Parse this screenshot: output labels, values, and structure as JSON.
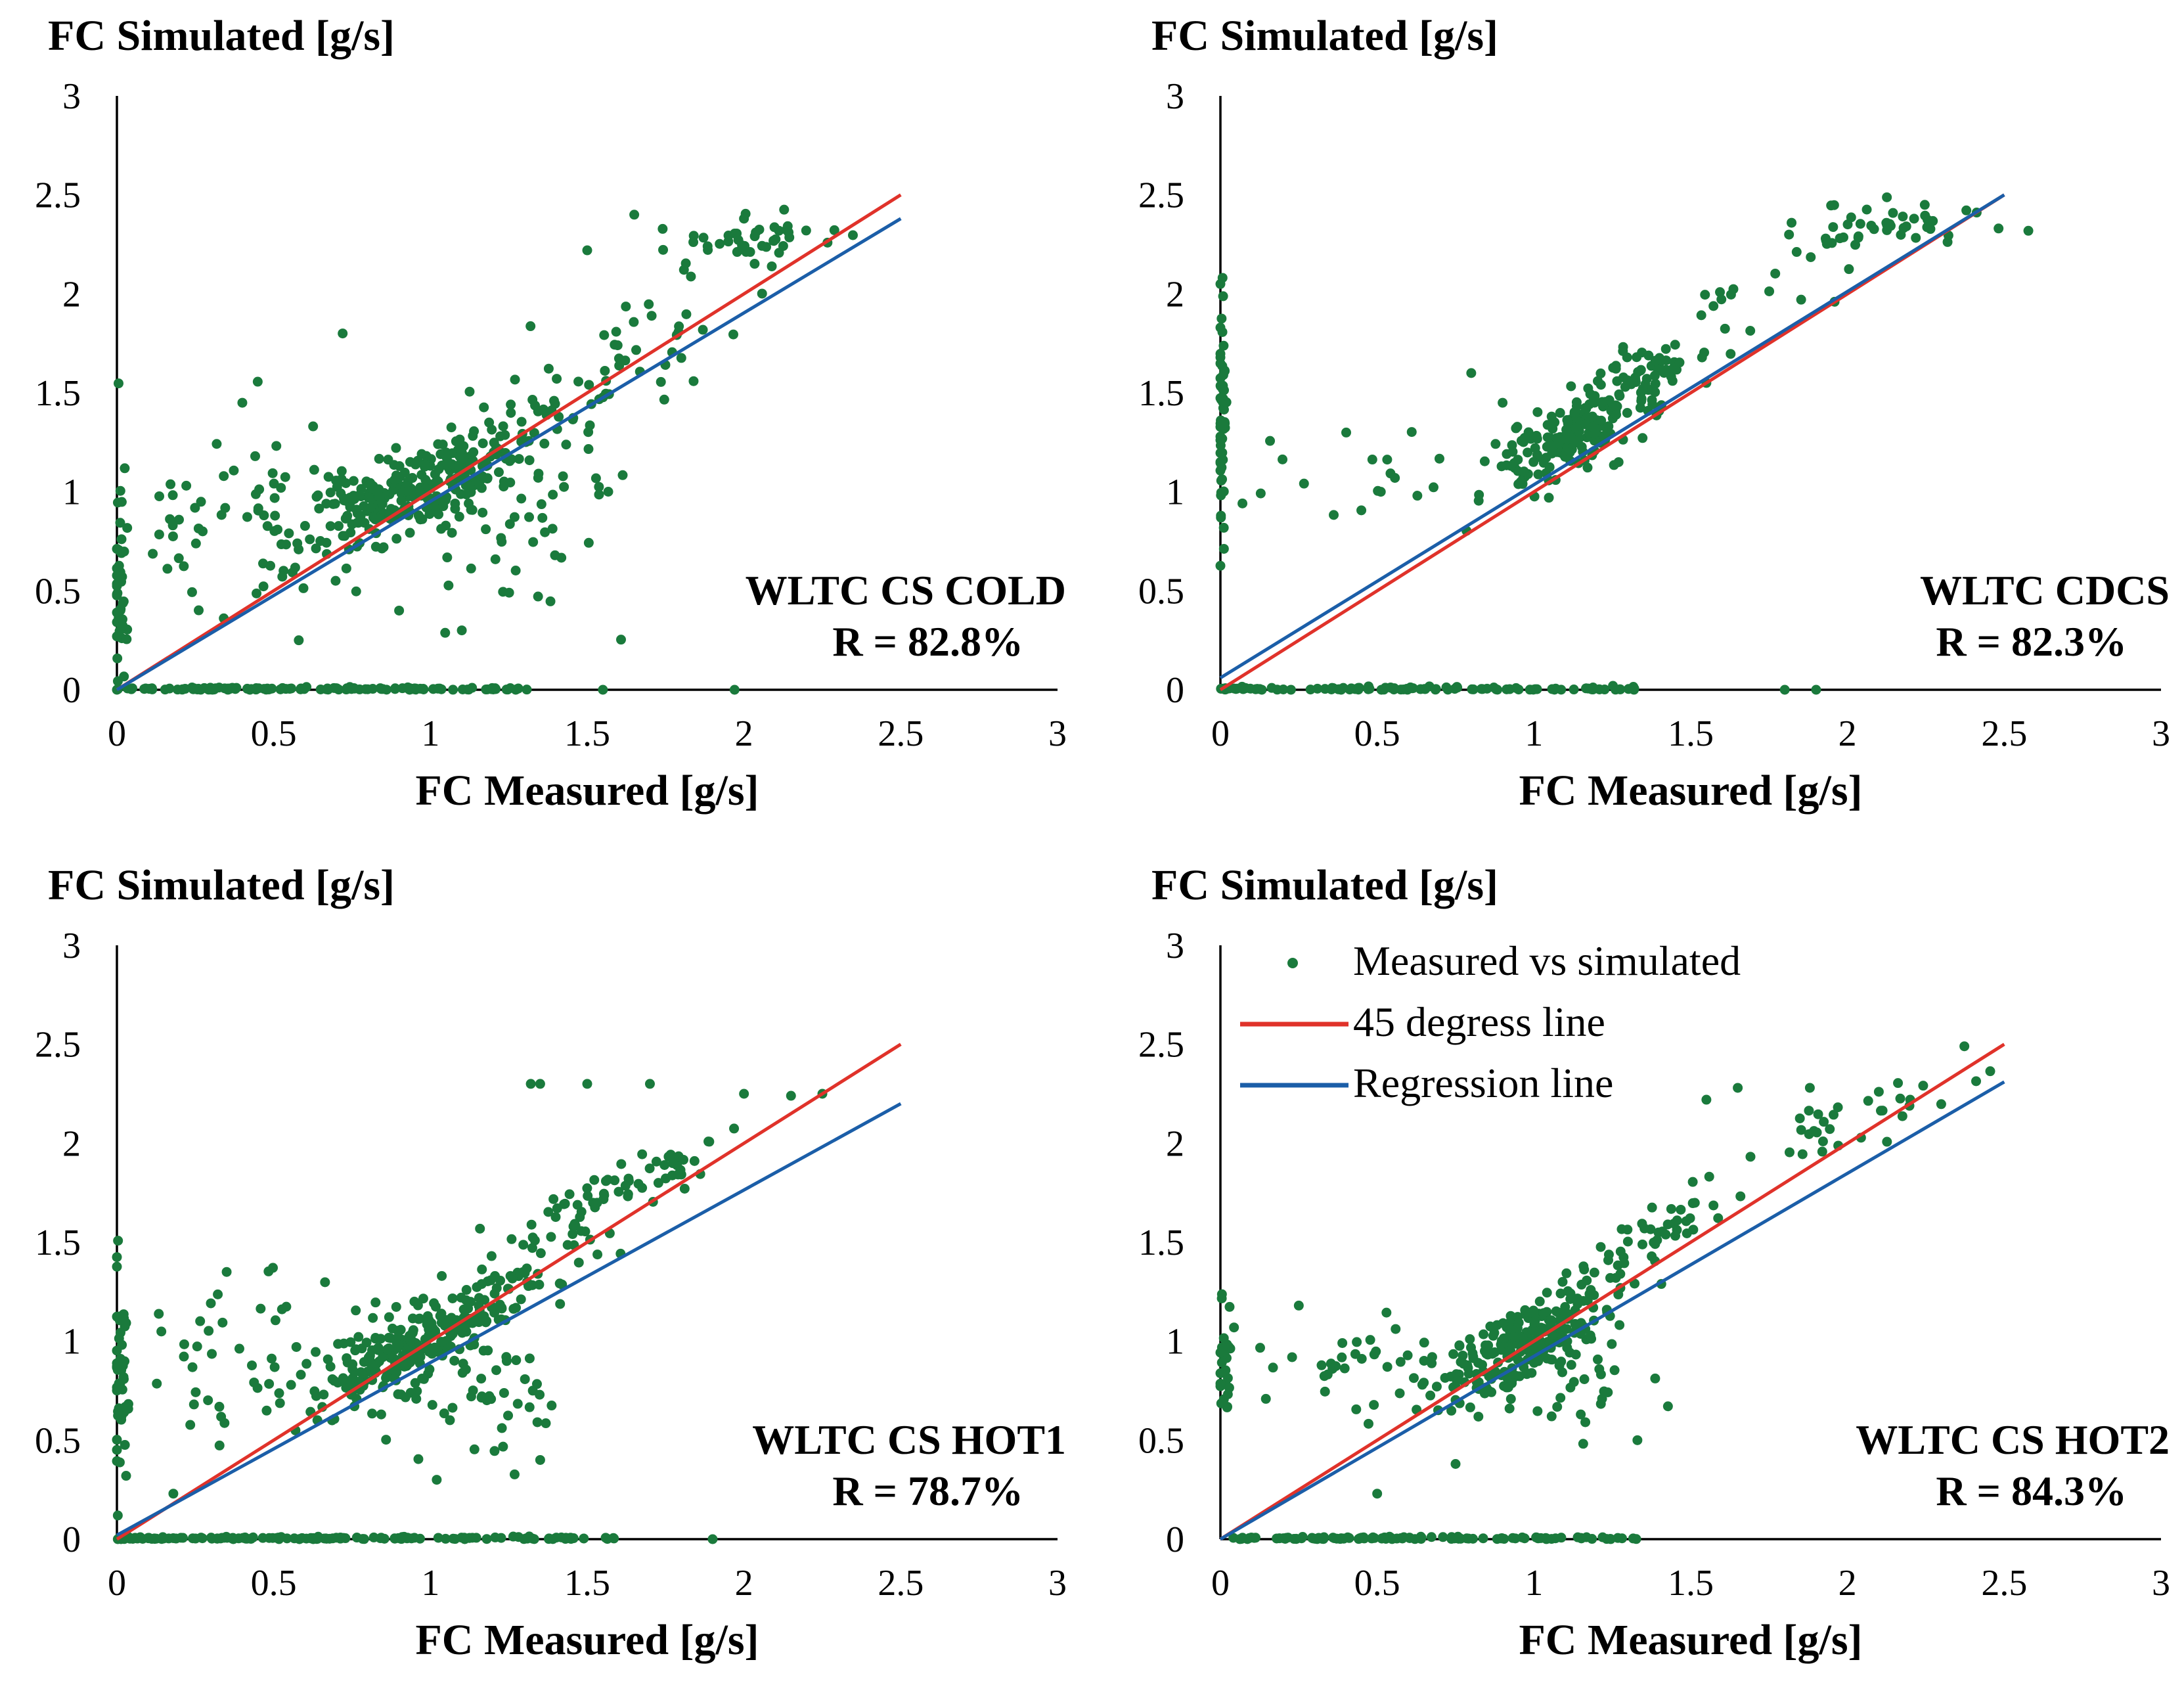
{
  "colors": {
    "points": "#1a7a3c",
    "diagonal": "#e0322a",
    "regression": "#1b5ea8",
    "axis": "#000000"
  },
  "legend": {
    "entries": [
      {
        "label": "Measured vs simulated",
        "kind": "points"
      },
      {
        "label": "45 degress line",
        "kind": "diagonal"
      },
      {
        "label": "Regression line",
        "kind": "regression"
      }
    ]
  },
  "chart_data": [
    {
      "type": "scatter",
      "id": "cs-cold",
      "ylabel": "FC Simulated [g/s]",
      "xlabel": "FC Measured [g/s]",
      "xlim": [
        0,
        3
      ],
      "ylim": [
        0,
        3
      ],
      "xticks": [
        "0",
        "0.5",
        "1",
        "1.5",
        "2",
        "2.5",
        "3"
      ],
      "yticks": [
        "0",
        "0.5",
        "1",
        "1.5",
        "2",
        "2.5",
        "3"
      ],
      "title": "WLTC CS COLD",
      "r_label": "R = 82.8%",
      "diagonal": {
        "x": [
          0,
          2.5
        ],
        "y": [
          0,
          2.5
        ]
      },
      "regression": {
        "x": [
          0,
          2.5
        ],
        "y": [
          0,
          2.38
        ]
      },
      "seed": 11,
      "clusters": [
        {
          "n": 260,
          "cx": 0.95,
          "cy": 1.02,
          "sx": 0.18,
          "sy": 0.16,
          "corr": 0.75
        },
        {
          "n": 70,
          "cx": 1.25,
          "cy": 0.9,
          "sx": 0.18,
          "sy": 0.3,
          "corr": 0.0
        },
        {
          "n": 50,
          "cx": 0.5,
          "cy": 0.9,
          "sx": 0.16,
          "sy": 0.22,
          "corr": 0.0
        },
        {
          "n": 40,
          "cx": 1.6,
          "cy": 1.65,
          "sx": 0.18,
          "sy": 0.2,
          "corr": 0.8
        },
        {
          "n": 45,
          "cx": 2.05,
          "cy": 2.28,
          "sx": 0.15,
          "sy": 0.07,
          "corr": 0.3
        },
        {
          "n": 45,
          "cx": 0.01,
          "cy": 0.6,
          "sx": 0.012,
          "sy": 0.3,
          "corr": 0.0
        },
        {
          "n": 15,
          "cx": 0.18,
          "cy": 0.8,
          "sx": 0.07,
          "sy": 0.22,
          "corr": 0.0
        }
      ],
      "baseline": {
        "n": 130,
        "xmin": 0.0,
        "xmax": 1.35
      },
      "extra_points": [
        [
          0.72,
          1.8
        ],
        [
          1.5,
          2.22
        ],
        [
          1.65,
          2.4
        ],
        [
          2.0,
          2.38
        ],
        [
          0.4,
          1.45
        ],
        [
          1.97,
          0.0
        ],
        [
          1.55,
          0.0
        ],
        [
          0.58,
          0.25
        ],
        [
          0.9,
          0.4
        ],
        [
          1.1,
          0.3
        ]
      ]
    },
    {
      "type": "scatter",
      "id": "cdcs",
      "ylabel": "FC Simulated [g/s]",
      "xlabel": "FC Measured [g/s]",
      "xlim": [
        0,
        3
      ],
      "ylim": [
        0,
        3
      ],
      "xticks": [
        "0",
        "0.5",
        "1",
        "1.5",
        "2",
        "2.5",
        "3"
      ],
      "yticks": [
        "0",
        "0.5",
        "1",
        "1.5",
        "2",
        "2.5",
        "3"
      ],
      "title": "WLTC CDCS",
      "r_label": "R = 82.3%",
      "diagonal": {
        "x": [
          0,
          2.5
        ],
        "y": [
          0,
          2.5
        ]
      },
      "regression": {
        "x": [
          0,
          2.5
        ],
        "y": [
          0.06,
          2.5
        ]
      },
      "seed": 23,
      "clusters": [
        {
          "n": 170,
          "cx": 1.12,
          "cy": 1.28,
          "sx": 0.13,
          "sy": 0.14,
          "corr": 0.7
        },
        {
          "n": 40,
          "cx": 1.35,
          "cy": 1.6,
          "sx": 0.08,
          "sy": 0.08,
          "corr": 0.5
        },
        {
          "n": 45,
          "cx": 2.1,
          "cy": 2.35,
          "sx": 0.14,
          "sy": 0.06,
          "corr": 0.3
        },
        {
          "n": 60,
          "cx": 0.005,
          "cy": 1.3,
          "sx": 0.006,
          "sy": 0.35,
          "corr": 0.0
        },
        {
          "n": 20,
          "cx": 0.45,
          "cy": 1.05,
          "sx": 0.18,
          "sy": 0.12,
          "corr": 0.0
        },
        {
          "n": 20,
          "cx": 1.7,
          "cy": 1.95,
          "sx": 0.15,
          "sy": 0.18,
          "corr": 0.6
        }
      ],
      "baseline": {
        "n": 110,
        "xmin": 0.0,
        "xmax": 1.35
      },
      "extra_points": [
        [
          0.8,
          1.6
        ],
        [
          0.9,
          1.45
        ],
        [
          1.9,
          0.0
        ],
        [
          1.8,
          0.0
        ],
        [
          0.0,
          2.05
        ],
        [
          1.55,
          1.55
        ],
        [
          1.27,
          1.15
        ]
      ]
    },
    {
      "type": "scatter",
      "id": "cs-hot1",
      "ylabel": "FC Simulated [g/s]",
      "xlabel": "FC Measured [g/s]",
      "xlim": [
        0,
        3
      ],
      "ylim": [
        0,
        3
      ],
      "xticks": [
        "0",
        "0.5",
        "1",
        "1.5",
        "2",
        "2.5",
        "3"
      ],
      "yticks": [
        "0",
        "0.5",
        "1",
        "1.5",
        "2",
        "2.5",
        "3"
      ],
      "title": "WLTC CS HOT1",
      "r_label": "R = 78.7%",
      "diagonal": {
        "x": [
          0,
          2.5
        ],
        "y": [
          0,
          2.5
        ]
      },
      "regression": {
        "x": [
          0,
          2.5
        ],
        "y": [
          0.02,
          2.2
        ]
      },
      "seed": 37,
      "clusters": [
        {
          "n": 240,
          "cx": 0.95,
          "cy": 0.98,
          "sx": 0.16,
          "sy": 0.15,
          "corr": 0.75
        },
        {
          "n": 60,
          "cx": 1.3,
          "cy": 1.35,
          "sx": 0.18,
          "sy": 0.2,
          "corr": 0.85
        },
        {
          "n": 55,
          "cx": 1.65,
          "cy": 1.8,
          "sx": 0.17,
          "sy": 0.12,
          "corr": 0.85
        },
        {
          "n": 40,
          "cx": 1.15,
          "cy": 0.75,
          "sx": 0.13,
          "sy": 0.15,
          "corr": 0.0
        },
        {
          "n": 45,
          "cx": 0.4,
          "cy": 0.9,
          "sx": 0.2,
          "sy": 0.22,
          "corr": 0.0
        },
        {
          "n": 50,
          "cx": 0.01,
          "cy": 0.75,
          "sx": 0.012,
          "sy": 0.3,
          "corr": 0.0
        }
      ],
      "baseline": {
        "n": 140,
        "xmin": 0.0,
        "xmax": 1.6
      },
      "extra_points": [
        [
          1.32,
          2.3
        ],
        [
          1.35,
          2.3
        ],
        [
          1.5,
          2.3
        ],
        [
          1.7,
          2.3
        ],
        [
          2.0,
          2.25
        ],
        [
          2.15,
          2.24
        ],
        [
          2.25,
          2.25
        ],
        [
          1.9,
          0.0
        ],
        [
          1.02,
          0.3
        ],
        [
          1.35,
          0.4
        ],
        [
          0.18,
          0.23
        ],
        [
          0.35,
          1.35
        ]
      ]
    },
    {
      "type": "scatter",
      "id": "cs-hot2",
      "ylabel": "FC Simulated [g/s]",
      "xlabel": "FC Measured [g/s]",
      "xlim": [
        0,
        3
      ],
      "ylim": [
        0,
        3
      ],
      "xticks": [
        "0",
        "0.5",
        "1",
        "1.5",
        "2",
        "2.5",
        "3"
      ],
      "yticks": [
        "0",
        "0.5",
        "1",
        "1.5",
        "2",
        "2.5",
        "3"
      ],
      "title": "WLTC CS HOT2",
      "r_label": "R = 84.3%",
      "diagonal": {
        "x": [
          0,
          2.5
        ],
        "y": [
          0,
          2.5
        ]
      },
      "regression": {
        "x": [
          0,
          2.5
        ],
        "y": [
          0,
          2.31
        ]
      },
      "seed": 53,
      "clusters": [
        {
          "n": 230,
          "cx": 0.95,
          "cy": 0.98,
          "sx": 0.14,
          "sy": 0.14,
          "corr": 0.75
        },
        {
          "n": 50,
          "cx": 1.35,
          "cy": 1.5,
          "sx": 0.15,
          "sy": 0.15,
          "corr": 0.85
        },
        {
          "n": 35,
          "cx": 1.15,
          "cy": 0.8,
          "sx": 0.12,
          "sy": 0.15,
          "corr": 0.0
        },
        {
          "n": 30,
          "cx": 0.45,
          "cy": 0.85,
          "sx": 0.15,
          "sy": 0.12,
          "corr": 0.0
        },
        {
          "n": 30,
          "cx": 0.01,
          "cy": 0.9,
          "sx": 0.012,
          "sy": 0.2,
          "corr": 0.0
        },
        {
          "n": 30,
          "cx": 2.0,
          "cy": 2.1,
          "sx": 0.17,
          "sy": 0.13,
          "corr": 0.8
        }
      ],
      "baseline": {
        "n": 110,
        "xmin": 0.0,
        "xmax": 1.33
      },
      "extra_points": [
        [
          1.55,
          2.22
        ],
        [
          1.65,
          2.28
        ],
        [
          1.88,
          2.28
        ],
        [
          2.1,
          2.26
        ],
        [
          2.2,
          2.22
        ],
        [
          0.75,
          0.38
        ],
        [
          0.5,
          0.23
        ],
        [
          1.33,
          0.5
        ],
        [
          0.25,
          1.18
        ]
      ]
    }
  ]
}
